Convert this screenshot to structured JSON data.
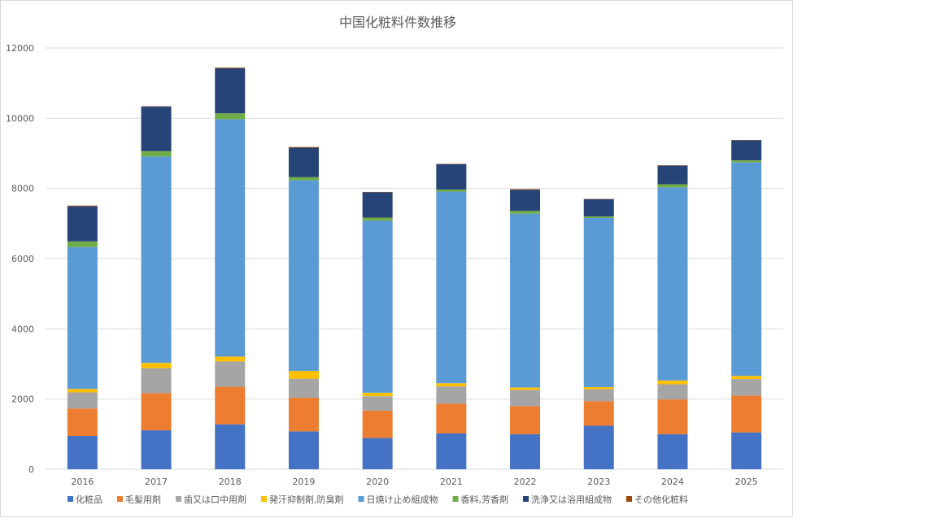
{
  "chart_data": {
    "type": "bar",
    "stacked": true,
    "title": "中国化粧料件数推移",
    "xlabel": "",
    "ylabel": "",
    "ylim": [
      0,
      12000
    ],
    "yticks": [
      0,
      2000,
      4000,
      6000,
      8000,
      10000,
      12000
    ],
    "grid": true,
    "legend_position": "bottom",
    "categories": [
      "2016",
      "2017",
      "2018",
      "2019",
      "2020",
      "2021",
      "2022",
      "2023",
      "2024",
      "2025"
    ],
    "series": [
      {
        "name": "化粧品",
        "color": "#4472c4",
        "values": [
          950,
          1110,
          1280,
          1080,
          890,
          1020,
          1000,
          1240,
          1000,
          1050
        ]
      },
      {
        "name": "毛髪用剤",
        "color": "#ed7d31",
        "values": [
          780,
          1060,
          1070,
          960,
          780,
          850,
          800,
          700,
          990,
          1050
        ]
      },
      {
        "name": "歯又は口中用剤",
        "color": "#a5a5a5",
        "values": [
          460,
          710,
          720,
          540,
          410,
          490,
          460,
          340,
          430,
          470
        ]
      },
      {
        "name": "発汗抑制剤,防臭剤",
        "color": "#ffc000",
        "values": [
          100,
          150,
          140,
          220,
          100,
          90,
          70,
          60,
          110,
          90
        ]
      },
      {
        "name": "日焼け止め組成物",
        "color": "#5b9bd5",
        "values": [
          4040,
          5880,
          6760,
          5430,
          4900,
          5460,
          4950,
          4820,
          5500,
          6080
        ]
      },
      {
        "name": "香料,芳香剤",
        "color": "#70ad47",
        "values": [
          160,
          150,
          170,
          90,
          90,
          60,
          80,
          40,
          90,
          60
        ]
      },
      {
        "name": "洗浄又は浴用組成物",
        "color": "#264478",
        "values": [
          1000,
          1270,
          1280,
          840,
          720,
          720,
          600,
          490,
          530,
          570
        ]
      },
      {
        "name": "その他化粧料",
        "color": "#9e480e",
        "values": [
          20,
          10,
          20,
          20,
          10,
          10,
          20,
          10,
          10,
          10
        ]
      }
    ]
  }
}
